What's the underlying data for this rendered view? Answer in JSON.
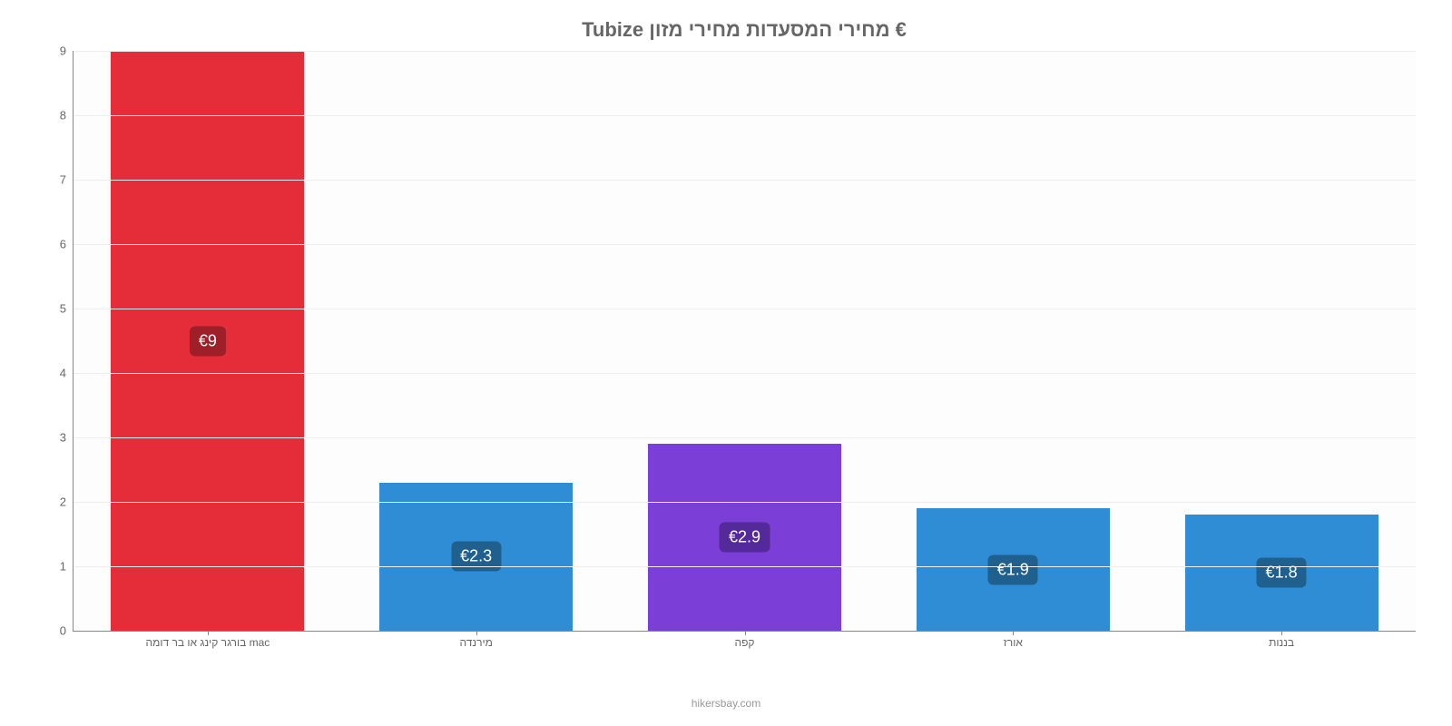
{
  "chart": {
    "type": "bar",
    "title": "€ מחירי המסעדות מחירי מזון Tubize",
    "title_color": "#666666",
    "title_fontsize": 22,
    "attribution": "hikersbay.com",
    "attribution_color": "#999999",
    "background_color": "#ffffff",
    "plot_background": "#fdfdfd",
    "grid_color": "#eeeeee",
    "axis_color": "#888888",
    "tick_label_color": "#666666",
    "tick_label_fontsize": 13,
    "x_label_fontsize": 12,
    "value_badge_fontsize": 18,
    "value_badge_text_color": "#ffffff",
    "ylim": [
      0,
      9
    ],
    "ytick_step": 1,
    "yticks": [
      0,
      1,
      2,
      3,
      4,
      5,
      6,
      7,
      8,
      9
    ],
    "bar_width": 0.72,
    "categories": [
      "mac בורגר קינג או בר דומה",
      "מירנדה",
      "קפה",
      "אורז",
      "בננות"
    ],
    "values": [
      9,
      2.3,
      2.9,
      1.9,
      1.8
    ],
    "value_labels": [
      "€9",
      "€2.3",
      "€2.9",
      "€1.9",
      "€1.8"
    ],
    "bar_colors": [
      "#e52d39",
      "#2f8dd6",
      "#7b3ed6",
      "#2f8dd6",
      "#2f8dd6"
    ],
    "badge_colors": [
      "#9e1f27",
      "#20608f",
      "#54299a",
      "#20608f",
      "#20608f"
    ]
  }
}
